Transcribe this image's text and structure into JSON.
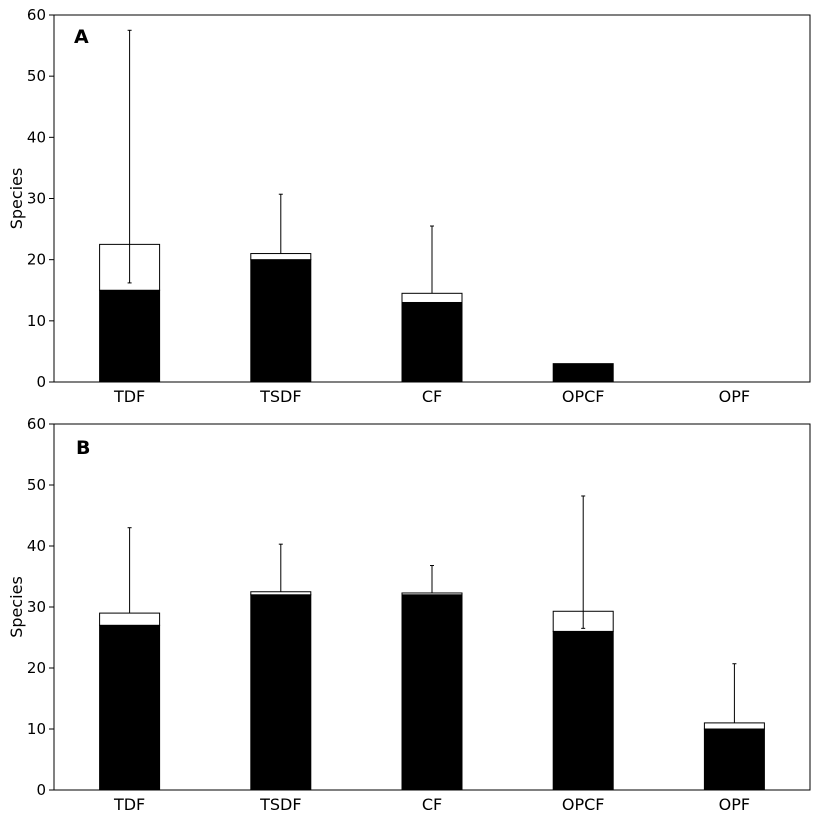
{
  "chart_data": [
    {
      "type": "bar",
      "panel": "A",
      "ylabel": "Species",
      "xlabel": "",
      "ylim": [
        0,
        60
      ],
      "yticks": [
        0,
        10,
        20,
        30,
        40,
        50,
        60
      ],
      "categories": [
        "TDF",
        "TSDF",
        "CF",
        "OPCF",
        "OPF"
      ],
      "stacked": true,
      "series": [
        {
          "values": [
            15,
            20,
            13,
            3,
            0
          ],
          "color": "#000000"
        },
        {
          "values": [
            7.5,
            1,
            1.5,
            0,
            0
          ],
          "color": "#ffffff"
        }
      ],
      "error_bars": {
        "upper": [
          57.5,
          30.7,
          25.5,
          null,
          null
        ],
        "lower": [
          16.2,
          null,
          null,
          null,
          null
        ]
      }
    },
    {
      "type": "bar",
      "panel": "B",
      "ylabel": "Species",
      "xlabel": "",
      "ylim": [
        0,
        60
      ],
      "yticks": [
        0,
        10,
        20,
        30,
        40,
        50,
        60
      ],
      "categories": [
        "TDF",
        "TSDF",
        "CF",
        "OPCF",
        "OPF"
      ],
      "stacked": true,
      "series": [
        {
          "values": [
            27,
            32,
            32,
            26,
            10
          ],
          "color": "#000000"
        },
        {
          "values": [
            2,
            0.5,
            0.3,
            3.3,
            1
          ],
          "color": "#ffffff"
        }
      ],
      "error_bars": {
        "upper": [
          43,
          40.3,
          36.8,
          48.2,
          20.7
        ],
        "lower": [
          null,
          null,
          null,
          26.5,
          null
        ]
      }
    }
  ]
}
